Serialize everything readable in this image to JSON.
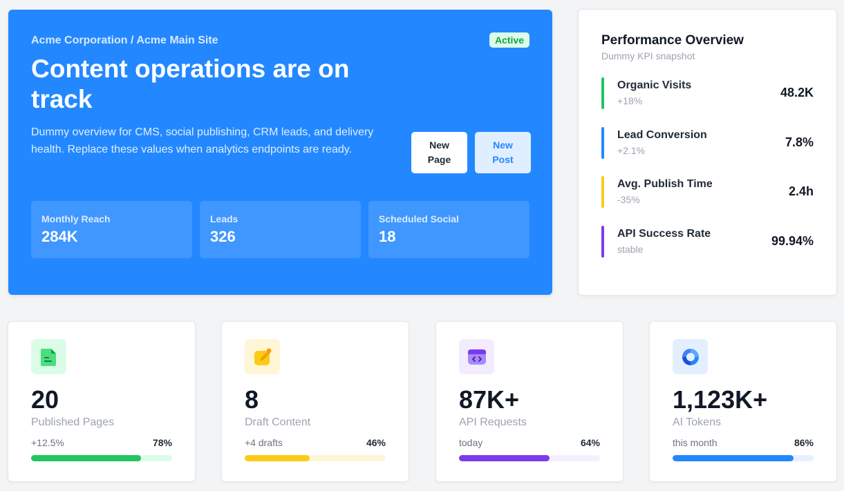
{
  "hero": {
    "breadcrumb": "Acme Corporation / Acme Main Site",
    "status": "Active",
    "title": "Content operations are on track",
    "description": "Dummy overview for CMS, social publishing, CRM leads, and delivery health. Replace these values when analytics endpoints are ready.",
    "buttons": {
      "new_page": "New Page",
      "new_post": "New Post"
    },
    "stats": [
      {
        "label": "Monthly Reach",
        "value": "284K"
      },
      {
        "label": "Leads",
        "value": "326"
      },
      {
        "label": "Scheduled Social",
        "value": "18"
      }
    ]
  },
  "performance": {
    "title": "Performance Overview",
    "subtitle": "Dummy KPI snapshot",
    "kpis": [
      {
        "label": "Organic Visits",
        "change": "+18%",
        "value": "48.2K",
        "color": "#22c55e"
      },
      {
        "label": "Lead Conversion",
        "change": "+2.1%",
        "value": "7.8%",
        "color": "#2388ff"
      },
      {
        "label": "Avg. Publish Time",
        "change": "-35%",
        "value": "2.4h",
        "color": "#facc15"
      },
      {
        "label": "API Success Rate",
        "change": "stable",
        "value": "99.94%",
        "color": "#7c3aed"
      }
    ]
  },
  "cards": [
    {
      "icon": "document-icon",
      "value": "20",
      "label": "Published Pages",
      "meta": "+12.5%",
      "percent": "78%",
      "progress": 0.78,
      "color": "#22c55e",
      "track": "#dcfce7",
      "icon_bg": "#dcfce7"
    },
    {
      "icon": "edit-note-icon",
      "value": "8",
      "label": "Draft Content",
      "meta": "+4 drafts",
      "percent": "46%",
      "progress": 0.46,
      "color": "#facc15",
      "track": "#fef6d6",
      "icon_bg": "#fef6d6"
    },
    {
      "icon": "code-window-icon",
      "value": "87K+",
      "label": "API Requests",
      "meta": "today",
      "percent": "64%",
      "progress": 0.64,
      "color": "#7c3aed",
      "track": "#f5f0ff",
      "icon_bg": "#f3ecff"
    },
    {
      "icon": "ai-swirl-icon",
      "value": "1,123K+",
      "label": "AI Tokens",
      "meta": "this month",
      "percent": "86%",
      "progress": 0.86,
      "color": "#2388ff",
      "track": "#e6f1ff",
      "icon_bg": "#e3efff"
    }
  ]
}
